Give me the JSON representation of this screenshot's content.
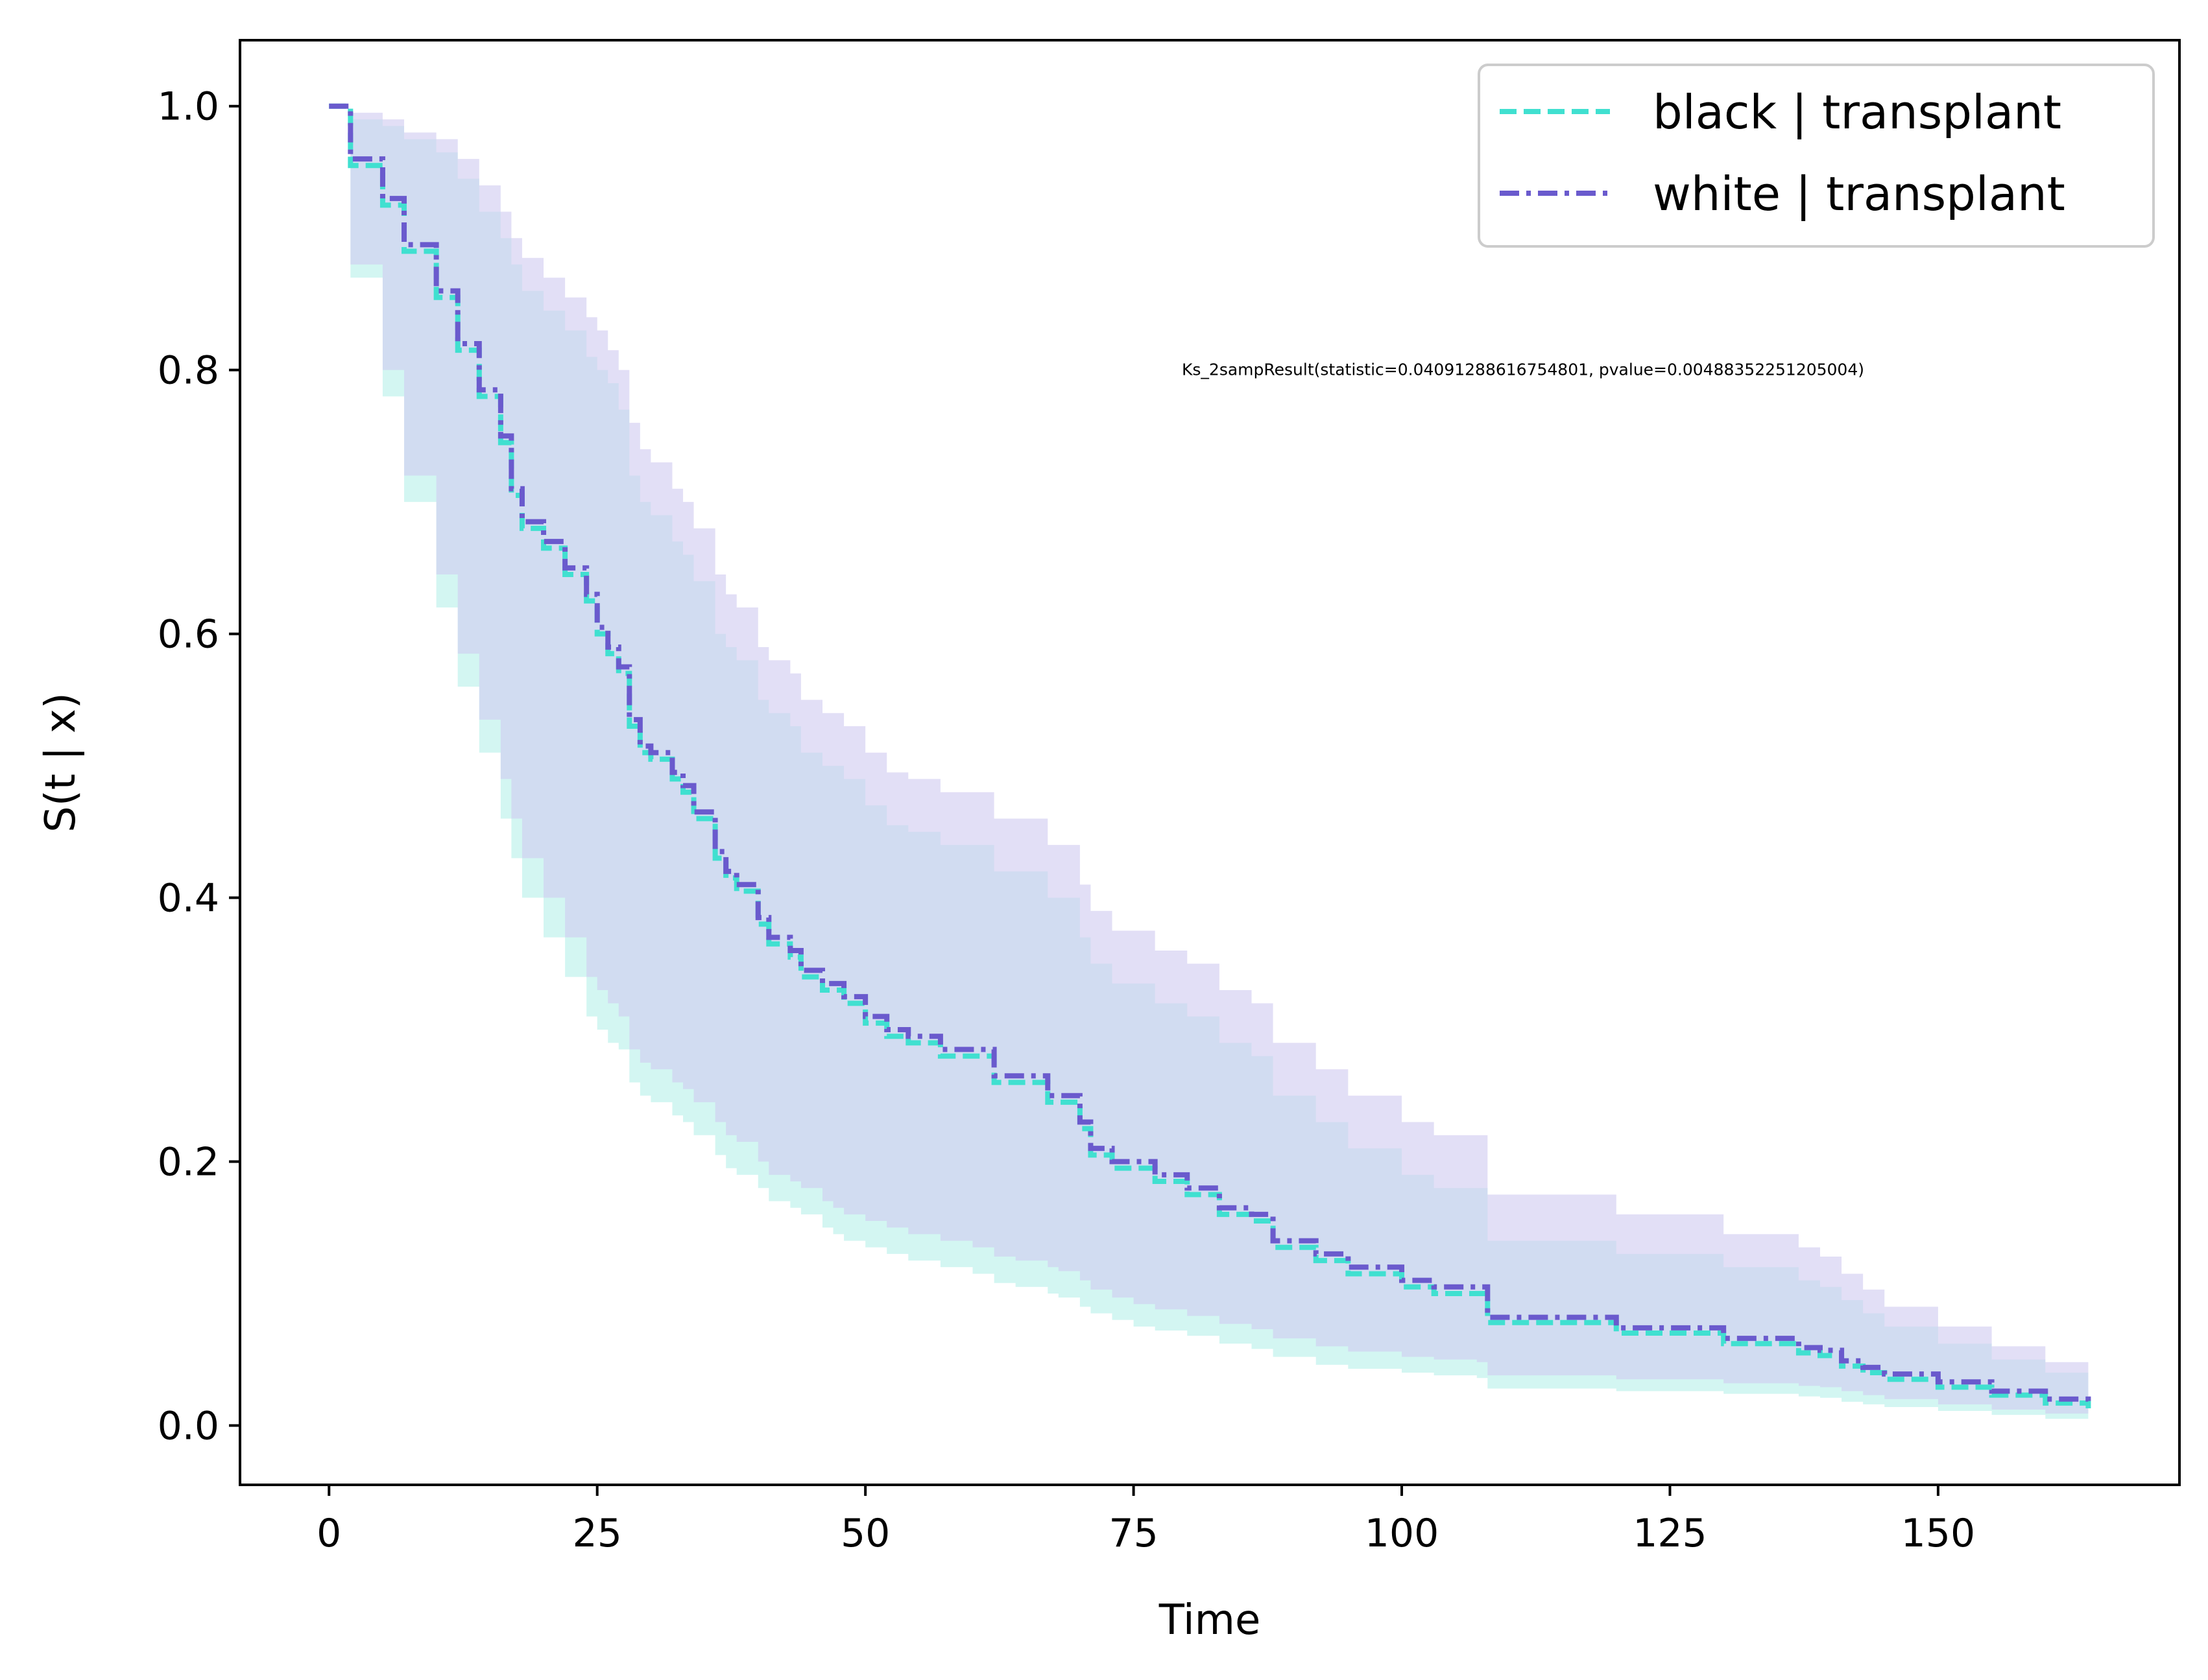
{
  "chart_data": {
    "type": "line",
    "title": "",
    "xlabel": "Time",
    "ylabel": "S(t | x)",
    "xlim": [
      -8.3,
      172.5
    ],
    "ylim": [
      -0.045,
      1.05
    ],
    "xticks": [
      0,
      25,
      50,
      75,
      100,
      125,
      150
    ],
    "yticks": [
      0.0,
      0.2,
      0.4,
      0.6,
      0.8,
      1.0
    ],
    "xtick_labels": [
      "0",
      "25",
      "50",
      "75",
      "100",
      "125",
      "150"
    ],
    "ytick_labels": [
      "0.0",
      "0.2",
      "0.4",
      "0.6",
      "0.8",
      "1.0"
    ],
    "grid": false,
    "legend_position": "top-right",
    "annotation": {
      "text": "Ks_2sampResult(statistic=0.04091288616754801, pvalue=0.00488352251205004)",
      "x": 79.5,
      "y": 0.8
    },
    "series": [
      {
        "name": "black | transplant",
        "color": "#40e0d0",
        "line_style": "dashed",
        "band_color": "#b8f0ea",
        "x": [
          0,
          2,
          5,
          7,
          10,
          12,
          14,
          16,
          17,
          18,
          20,
          22,
          24,
          25,
          26,
          27,
          28,
          29,
          30,
          32,
          33,
          34,
          36,
          37,
          38,
          40,
          41,
          43,
          44,
          46,
          47,
          48,
          50,
          52,
          54,
          57,
          60,
          62,
          64,
          67,
          68,
          70,
          71,
          73,
          75,
          77,
          80,
          83,
          86,
          88,
          92,
          95,
          100,
          103,
          107,
          108,
          120,
          130,
          137,
          139,
          141,
          143,
          145,
          150,
          155,
          160,
          164
        ],
        "y": [
          1.0,
          0.955,
          0.925,
          0.89,
          0.855,
          0.815,
          0.78,
          0.745,
          0.705,
          0.68,
          0.665,
          0.645,
          0.625,
          0.6,
          0.585,
          0.57,
          0.53,
          0.51,
          0.505,
          0.49,
          0.48,
          0.46,
          0.43,
          0.415,
          0.405,
          0.38,
          0.365,
          0.355,
          0.34,
          0.33,
          0.33,
          0.32,
          0.305,
          0.295,
          0.29,
          0.28,
          0.28,
          0.26,
          0.26,
          0.245,
          0.245,
          0.225,
          0.205,
          0.195,
          0.195,
          0.185,
          0.175,
          0.16,
          0.155,
          0.135,
          0.125,
          0.115,
          0.105,
          0.1,
          0.1,
          0.078,
          0.07,
          0.062,
          0.055,
          0.053,
          0.045,
          0.04,
          0.035,
          0.029,
          0.023,
          0.017,
          0.013
        ],
        "lower": [
          1.0,
          0.87,
          0.78,
          0.7,
          0.62,
          0.56,
          0.51,
          0.46,
          0.43,
          0.4,
          0.37,
          0.34,
          0.31,
          0.3,
          0.29,
          0.285,
          0.26,
          0.25,
          0.245,
          0.235,
          0.23,
          0.22,
          0.205,
          0.195,
          0.19,
          0.18,
          0.17,
          0.165,
          0.16,
          0.15,
          0.145,
          0.14,
          0.135,
          0.13,
          0.125,
          0.12,
          0.115,
          0.108,
          0.105,
          0.1,
          0.097,
          0.09,
          0.085,
          0.08,
          0.075,
          0.072,
          0.068,
          0.062,
          0.058,
          0.052,
          0.046,
          0.043,
          0.04,
          0.038,
          0.036,
          0.028,
          0.026,
          0.024,
          0.022,
          0.021,
          0.018,
          0.016,
          0.014,
          0.011,
          0.008,
          0.005,
          0.003
        ],
        "upper": [
          1.0,
          0.99,
          0.985,
          0.975,
          0.965,
          0.945,
          0.92,
          0.9,
          0.88,
          0.86,
          0.845,
          0.83,
          0.81,
          0.8,
          0.79,
          0.77,
          0.72,
          0.7,
          0.69,
          0.67,
          0.66,
          0.64,
          0.6,
          0.59,
          0.58,
          0.55,
          0.54,
          0.53,
          0.51,
          0.5,
          0.5,
          0.49,
          0.47,
          0.455,
          0.45,
          0.44,
          0.44,
          0.42,
          0.42,
          0.4,
          0.4,
          0.37,
          0.35,
          0.335,
          0.335,
          0.32,
          0.31,
          0.29,
          0.28,
          0.25,
          0.23,
          0.21,
          0.19,
          0.18,
          0.18,
          0.14,
          0.13,
          0.12,
          0.11,
          0.105,
          0.095,
          0.085,
          0.075,
          0.062,
          0.05,
          0.04,
          0.03
        ]
      },
      {
        "name": "white | transplant",
        "color": "#6a5acd",
        "line_style": "dashdot",
        "band_color": "#d0cbf1",
        "x": [
          0,
          2,
          5,
          7,
          10,
          12,
          14,
          16,
          17,
          18,
          20,
          22,
          24,
          25,
          26,
          27,
          28,
          29,
          30,
          32,
          33,
          34,
          36,
          37,
          38,
          40,
          41,
          43,
          44,
          46,
          47,
          48,
          50,
          52,
          54,
          57,
          60,
          62,
          64,
          67,
          68,
          70,
          71,
          73,
          75,
          77,
          80,
          83,
          86,
          88,
          92,
          95,
          100,
          103,
          107,
          108,
          120,
          130,
          137,
          139,
          141,
          143,
          145,
          150,
          155,
          160,
          164
        ],
        "y": [
          1.0,
          0.96,
          0.93,
          0.895,
          0.86,
          0.82,
          0.785,
          0.75,
          0.71,
          0.685,
          0.67,
          0.65,
          0.63,
          0.605,
          0.59,
          0.575,
          0.535,
          0.515,
          0.51,
          0.495,
          0.485,
          0.465,
          0.435,
          0.42,
          0.41,
          0.385,
          0.37,
          0.36,
          0.345,
          0.335,
          0.335,
          0.325,
          0.31,
          0.3,
          0.295,
          0.285,
          0.285,
          0.265,
          0.265,
          0.25,
          0.25,
          0.23,
          0.21,
          0.2,
          0.2,
          0.19,
          0.18,
          0.165,
          0.16,
          0.14,
          0.13,
          0.12,
          0.11,
          0.105,
          0.105,
          0.082,
          0.074,
          0.066,
          0.059,
          0.057,
          0.049,
          0.044,
          0.039,
          0.033,
          0.026,
          0.02,
          0.016
        ],
        "lower": [
          1.0,
          0.88,
          0.8,
          0.72,
          0.645,
          0.585,
          0.535,
          0.49,
          0.46,
          0.43,
          0.4,
          0.37,
          0.34,
          0.33,
          0.32,
          0.31,
          0.285,
          0.275,
          0.27,
          0.26,
          0.255,
          0.245,
          0.23,
          0.22,
          0.215,
          0.2,
          0.19,
          0.185,
          0.18,
          0.17,
          0.165,
          0.16,
          0.155,
          0.15,
          0.145,
          0.14,
          0.135,
          0.128,
          0.125,
          0.12,
          0.117,
          0.11,
          0.103,
          0.097,
          0.092,
          0.088,
          0.083,
          0.077,
          0.073,
          0.066,
          0.06,
          0.056,
          0.052,
          0.05,
          0.048,
          0.038,
          0.035,
          0.032,
          0.03,
          0.029,
          0.026,
          0.023,
          0.02,
          0.016,
          0.012,
          0.009,
          0.006
        ],
        "upper": [
          1.0,
          0.995,
          0.99,
          0.98,
          0.975,
          0.96,
          0.94,
          0.92,
          0.9,
          0.885,
          0.87,
          0.855,
          0.84,
          0.83,
          0.815,
          0.8,
          0.76,
          0.74,
          0.73,
          0.71,
          0.7,
          0.68,
          0.645,
          0.63,
          0.62,
          0.59,
          0.58,
          0.57,
          0.55,
          0.54,
          0.54,
          0.53,
          0.51,
          0.495,
          0.49,
          0.48,
          0.48,
          0.46,
          0.46,
          0.44,
          0.44,
          0.41,
          0.39,
          0.375,
          0.375,
          0.36,
          0.35,
          0.33,
          0.32,
          0.29,
          0.27,
          0.25,
          0.23,
          0.22,
          0.22,
          0.175,
          0.16,
          0.145,
          0.135,
          0.128,
          0.115,
          0.103,
          0.09,
          0.075,
          0.06,
          0.048,
          0.036
        ]
      }
    ]
  }
}
